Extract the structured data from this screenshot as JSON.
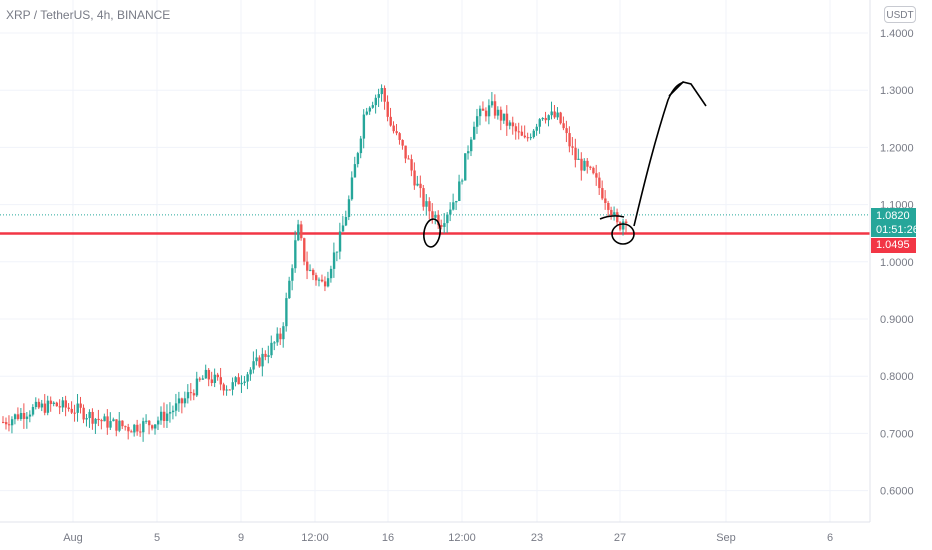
{
  "header": {
    "symbol_title": "XRP / TetherUS, 4h, BINANCE",
    "currency_button": "USDT"
  },
  "price_tags": {
    "last_price": "1.0820",
    "countdown": "01:51:26",
    "level_price": "1.0495"
  },
  "colors": {
    "up": "#26a69a",
    "down": "#ef5350",
    "level_line": "#f23645",
    "annotation": "#000000"
  },
  "chart_data": {
    "type": "candlestick",
    "interval": "4h",
    "y_axis": {
      "ticks": [
        "1.4000",
        "1.3000",
        "1.2000",
        "1.1000",
        "1.0000",
        "0.9000",
        "0.8000",
        "0.7000",
        "0.6000"
      ],
      "range": [
        0.59,
        1.44
      ],
      "position": "right"
    },
    "x_axis": {
      "ticks": [
        "Aug",
        "5",
        "9",
        "12:00",
        "16",
        "12:00",
        "23",
        "27",
        "Sep",
        "6"
      ]
    },
    "horizontal_levels": [
      {
        "value": 1.0495,
        "style": "solid",
        "color": "#f23645"
      },
      {
        "value": 1.082,
        "style": "dotted",
        "color": "#26a69a"
      }
    ],
    "price_path": [
      [
        0,
        0.72
      ],
      [
        0.03,
        0.74
      ],
      [
        0.06,
        0.75
      ],
      [
        0.09,
        0.74
      ],
      [
        0.12,
        0.72
      ],
      [
        0.15,
        0.71
      ],
      [
        0.18,
        0.72
      ],
      [
        0.21,
        0.75
      ],
      [
        0.24,
        0.8
      ],
      [
        0.27,
        0.78
      ],
      [
        0.3,
        0.82
      ],
      [
        0.33,
        0.87
      ],
      [
        0.35,
        1.06
      ],
      [
        0.36,
        0.99
      ],
      [
        0.38,
        0.96
      ],
      [
        0.4,
        1.04
      ],
      [
        0.41,
        1.1
      ],
      [
        0.43,
        1.27
      ],
      [
        0.45,
        1.3
      ],
      [
        0.46,
        1.24
      ],
      [
        0.48,
        1.18
      ],
      [
        0.5,
        1.1
      ],
      [
        0.52,
        1.07
      ],
      [
        0.54,
        1.12
      ],
      [
        0.56,
        1.25
      ],
      [
        0.58,
        1.27
      ],
      [
        0.6,
        1.24
      ],
      [
        0.62,
        1.21
      ],
      [
        0.64,
        1.26
      ],
      [
        0.66,
        1.25
      ],
      [
        0.68,
        1.18
      ],
      [
        0.7,
        1.15
      ],
      [
        0.72,
        1.1
      ],
      [
        0.73,
        1.06
      ],
      [
        0.74,
        1.08
      ]
    ],
    "annotations": [
      {
        "type": "circle",
        "at": "first low near 1.0495 level"
      },
      {
        "type": "circle",
        "at": "second low near 1.0495 level"
      },
      {
        "type": "arrow",
        "direction": "up",
        "target": "approx 1.32"
      }
    ]
  }
}
